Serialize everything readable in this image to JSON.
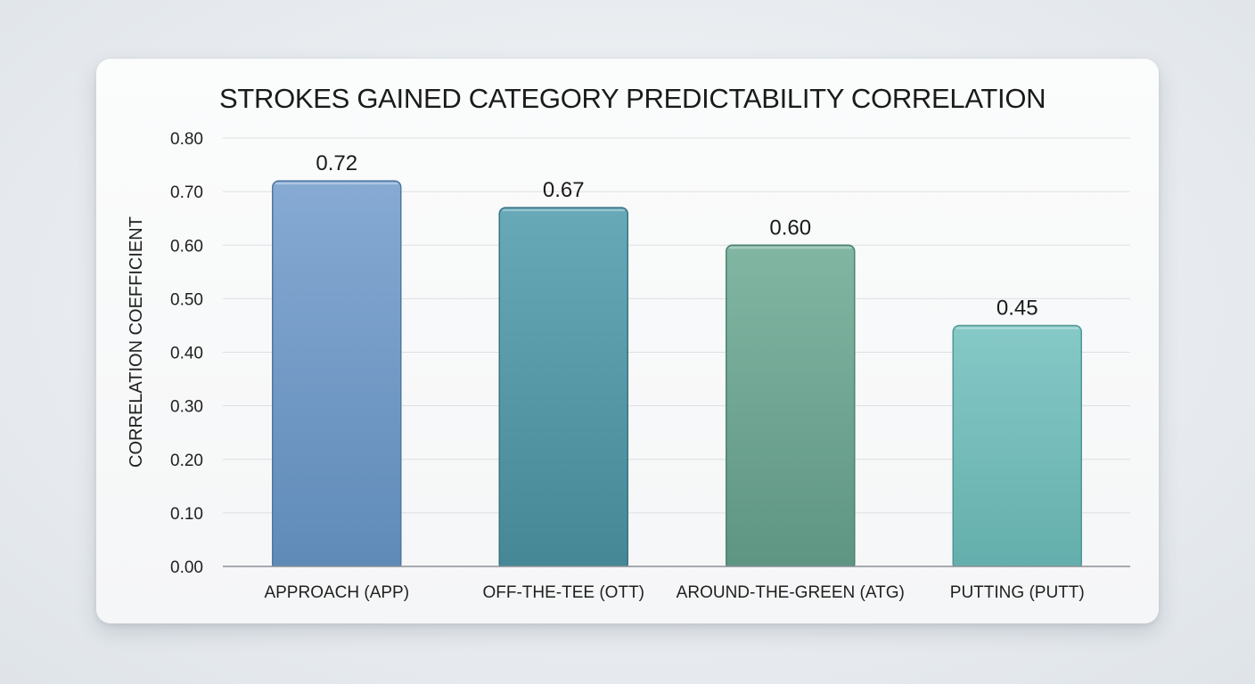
{
  "chart_data": {
    "type": "bar",
    "title": "STROKES GAINED CATEGORY PREDICTABILITY CORRELATION",
    "xlabel": "",
    "ylabel": "CORRELATION COEFFICIENT",
    "categories": [
      "APPROACH (APP)",
      "OFF-THE-TEE (OTT)",
      "AROUND-THE-GREEN (ATG)",
      "PUTTING (PUTT)"
    ],
    "values": [
      0.72,
      0.67,
      0.6,
      0.45
    ],
    "value_labels": [
      "0.72",
      "0.67",
      "0.60",
      "0.45"
    ],
    "ylim": [
      0,
      0.8
    ],
    "yticks": [
      0.0,
      0.1,
      0.2,
      0.3,
      0.4,
      0.5,
      0.6,
      0.7,
      0.8
    ],
    "ytick_labels": [
      "0.00",
      "0.10",
      "0.20",
      "0.30",
      "0.40",
      "0.50",
      "0.60",
      "0.70",
      "0.80"
    ],
    "grid": true,
    "legend": "none",
    "bar_colors": [
      {
        "top": "#86aad3",
        "bottom": "#5f8ab8",
        "edge": "#4f77a3"
      },
      {
        "top": "#68a9b8",
        "bottom": "#468795",
        "edge": "#3a7483"
      },
      {
        "top": "#80b6a2",
        "bottom": "#5e9482",
        "edge": "#4d8270"
      },
      {
        "top": "#86c9c7",
        "bottom": "#63aeac",
        "edge": "#4f9896"
      }
    ]
  }
}
